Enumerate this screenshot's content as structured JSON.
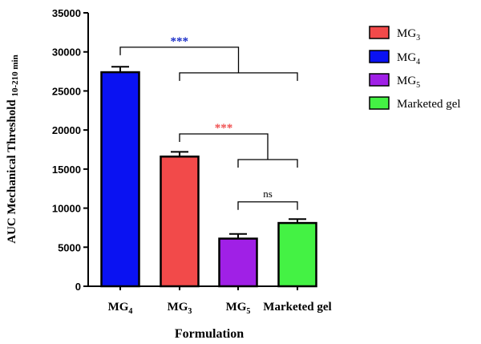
{
  "chart_data": {
    "type": "bar",
    "categories": [
      "MG4",
      "MG3",
      "MG5",
      "Marketed gel"
    ],
    "category_labels": [
      {
        "base": "MG",
        "sub": "4"
      },
      {
        "base": "MG",
        "sub": "3"
      },
      {
        "base": "MG",
        "sub": "5"
      },
      {
        "base": "Marketed gel",
        "sub": ""
      }
    ],
    "values": [
      27400,
      16600,
      6100,
      8100
    ],
    "errors": [
      700,
      600,
      600,
      500
    ],
    "colors": [
      "#0a12f2",
      "#f24a4a",
      "#a020e6",
      "#44f244"
    ],
    "ylabel": "AUC Mechanical Threshold",
    "ylabel_sub": "10-210 min",
    "xlabel": "Formulation",
    "ylim": [
      0,
      35000
    ],
    "yticks": [
      0,
      5000,
      10000,
      15000,
      20000,
      25000,
      30000,
      35000
    ],
    "legend_position": "right",
    "legend": [
      {
        "base": "MG",
        "sub": "3",
        "color": "#f24a4a"
      },
      {
        "base": "MG",
        "sub": "4",
        "color": "#0a12f2"
      },
      {
        "base": "MG",
        "sub": "5",
        "color": "#a020e6"
      },
      {
        "base": "Marketed gel",
        "sub": "",
        "color": "#44f244"
      }
    ],
    "significance": [
      {
        "label": "***",
        "color": "#1a2ec8",
        "from": "MG4",
        "to": [
          "MG3",
          "Marketed gel"
        ],
        "y": 30600
      },
      {
        "label": "***",
        "color": "#f05050",
        "from": "MG3",
        "to": [
          "MG5",
          "Marketed gel"
        ],
        "y": 19500
      },
      {
        "label": "ns",
        "color": "#000000",
        "from": "MG5",
        "to": [
          "Marketed gel"
        ],
        "y": 10800
      }
    ]
  }
}
